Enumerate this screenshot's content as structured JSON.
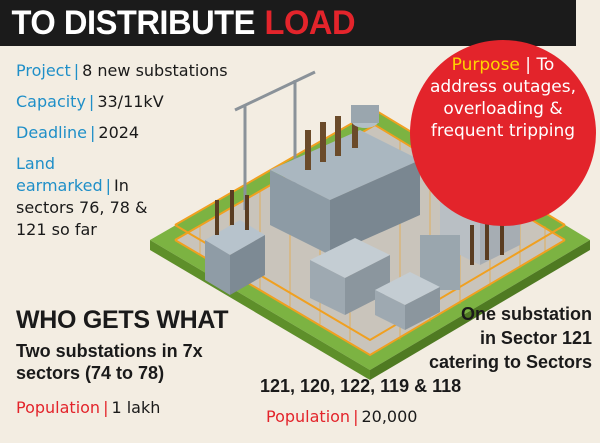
{
  "headline": {
    "main": "TO DISTRIBUTE",
    "accent": "LOAD"
  },
  "facts": {
    "project": {
      "key": "Project",
      "sep": "|",
      "value": "8 new substations"
    },
    "capacity": {
      "key": "Capacity",
      "sep": "|",
      "value": "33/11kV"
    },
    "deadline": {
      "key": "Deadline",
      "sep": "|",
      "value": "2024"
    },
    "land": {
      "key": "Land earmarked",
      "sep": "|",
      "value": "In sectors 76, 78 & 121 so far"
    }
  },
  "purpose": {
    "key": "Purpose",
    "sep": "|",
    "value": "To address outages, overloading & frequent tripping"
  },
  "who": {
    "title": "WHO GETS WHAT",
    "left": {
      "text": "Two substations in 7x sectors (74 to 78)",
      "pop_key": "Population",
      "pop_sep": "|",
      "pop_value": "1 lakh"
    },
    "right": {
      "line1": "One substation",
      "line2": "in Sector 121",
      "line3": "catering to Sectors",
      "line4": "121, 120, 122, 119 & 118",
      "pop_key": "Population",
      "pop_sep": "|",
      "pop_value": "20,000"
    }
  },
  "colors": {
    "accent_red": "#e3242b",
    "accent_blue": "#1f8fc8",
    "purpose_key": "#ffd400",
    "headline_bg": "#1b1b1b",
    "page_bg": "#f3ede2",
    "ground_green": "#7cb342"
  },
  "icons": [
    "electrical-substation-illustration"
  ]
}
